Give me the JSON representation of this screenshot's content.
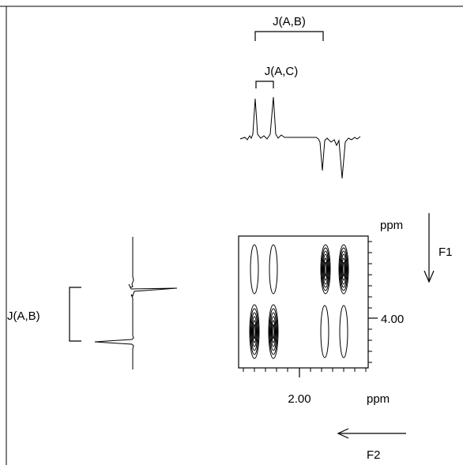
{
  "labels": {
    "j_ab_top": "J(A,B)",
    "j_ac_top": "J(A,C)",
    "j_ab_left": "J(A,B)",
    "f1_ppm": "ppm",
    "f1_axis": "F1",
    "f1_tick": "4.00",
    "f2_tick": "2.00",
    "f2_ppm": "ppm",
    "f2_axis": "F2"
  }
}
